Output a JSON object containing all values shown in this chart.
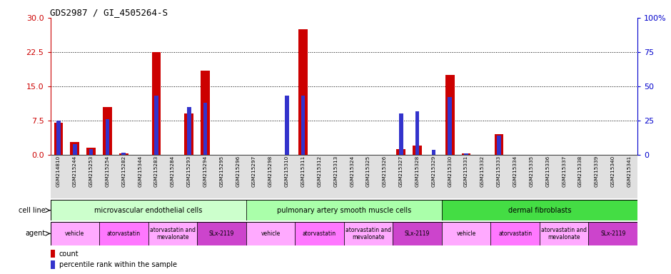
{
  "title": "GDS2987 / GI_4505264-S",
  "samples": [
    "GSM214810",
    "GSM215244",
    "GSM215253",
    "GSM215254",
    "GSM215282",
    "GSM215344",
    "GSM215283",
    "GSM215284",
    "GSM215293",
    "GSM215294",
    "GSM215295",
    "GSM215296",
    "GSM215297",
    "GSM215298",
    "GSM215310",
    "GSM215311",
    "GSM215312",
    "GSM215313",
    "GSM215324",
    "GSM215325",
    "GSM215326",
    "GSM215327",
    "GSM215328",
    "GSM215329",
    "GSM215330",
    "GSM215331",
    "GSM215332",
    "GSM215333",
    "GSM215334",
    "GSM215335",
    "GSM215336",
    "GSM215337",
    "GSM215338",
    "GSM215339",
    "GSM215340",
    "GSM215341"
  ],
  "count": [
    7.0,
    2.8,
    1.5,
    10.5,
    0.3,
    0.0,
    22.5,
    0.0,
    9.0,
    18.5,
    0.0,
    0.0,
    0.0,
    0.0,
    0.0,
    27.5,
    0.0,
    0.0,
    0.0,
    0.0,
    0.0,
    1.2,
    2.0,
    0.0,
    17.5,
    0.3,
    0.0,
    4.5,
    0.0,
    0.0,
    0.0,
    0.0,
    0.0,
    0.0,
    0.0,
    0.0
  ],
  "percentile": [
    25.0,
    8.0,
    4.0,
    26.0,
    1.5,
    0.0,
    43.0,
    0.0,
    35.0,
    38.0,
    0.0,
    0.0,
    0.0,
    0.0,
    43.0,
    43.0,
    0.0,
    0.0,
    0.0,
    0.0,
    0.0,
    30.0,
    32.0,
    3.5,
    42.0,
    1.0,
    0.0,
    14.0,
    0.0,
    0.0,
    0.0,
    0.0,
    0.0,
    0.0,
    0.0,
    0.0
  ],
  "ylim_left": [
    0,
    30
  ],
  "ylim_right": [
    0,
    100
  ],
  "yticks_left": [
    0,
    7.5,
    15,
    22.5,
    30
  ],
  "yticks_right": [
    0,
    25,
    50,
    75,
    100
  ],
  "cell_line_groups": [
    {
      "label": "microvascular endothelial cells",
      "start": 0,
      "end": 12,
      "color": "#CCFFCC"
    },
    {
      "label": "pulmonary artery smooth muscle cells",
      "start": 12,
      "end": 24,
      "color": "#AAFFAA"
    },
    {
      "label": "dermal fibroblasts",
      "start": 24,
      "end": 36,
      "color": "#44DD44"
    }
  ],
  "agent_groups": [
    {
      "label": "vehicle",
      "start": 0,
      "end": 3,
      "color": "#FFAAFF"
    },
    {
      "label": "atorvastatin",
      "start": 3,
      "end": 6,
      "color": "#FF77FF"
    },
    {
      "label": "atorvastatin and\nmevalonate",
      "start": 6,
      "end": 9,
      "color": "#FFAAFF"
    },
    {
      "label": "SLx-2119",
      "start": 9,
      "end": 12,
      "color": "#CC44CC"
    },
    {
      "label": "vehicle",
      "start": 12,
      "end": 15,
      "color": "#FFAAFF"
    },
    {
      "label": "atorvastatin",
      "start": 15,
      "end": 18,
      "color": "#FF77FF"
    },
    {
      "label": "atorvastatin and\nmevalonate",
      "start": 18,
      "end": 21,
      "color": "#FFAAFF"
    },
    {
      "label": "SLx-2119",
      "start": 21,
      "end": 24,
      "color": "#CC44CC"
    },
    {
      "label": "vehicle",
      "start": 24,
      "end": 27,
      "color": "#FFAAFF"
    },
    {
      "label": "atorvastatin",
      "start": 27,
      "end": 30,
      "color": "#FF77FF"
    },
    {
      "label": "atorvastatin and\nmevalonate",
      "start": 30,
      "end": 33,
      "color": "#FFAAFF"
    },
    {
      "label": "SLx-2119",
      "start": 33,
      "end": 36,
      "color": "#CC44CC"
    }
  ],
  "bar_color_red": "#CC0000",
  "bar_color_blue": "#3333CC",
  "title_color": "#000000",
  "left_axis_color": "#CC0000",
  "right_axis_color": "#0000CC"
}
